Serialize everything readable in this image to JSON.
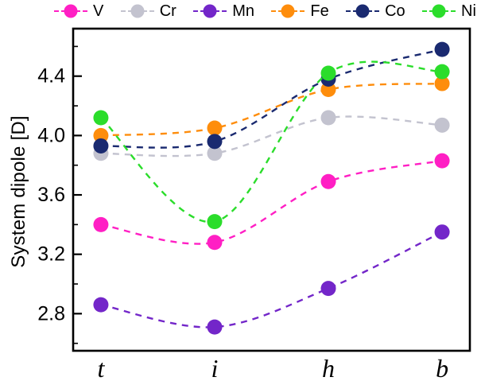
{
  "chart_data": {
    "type": "line",
    "title": "",
    "xlabel": "",
    "ylabel": "System dipole [D]",
    "categories": [
      "t",
      "i",
      "h",
      "b"
    ],
    "ylim": [
      2.55,
      4.72
    ],
    "yticks": [
      2.8,
      3.2,
      3.6,
      4.0,
      4.4
    ],
    "minor_yticks": [
      2.6,
      3.0,
      3.4,
      3.8,
      4.2,
      4.6
    ],
    "grid": false,
    "legend_position": "top",
    "line_style": "dashed",
    "marker": "circle",
    "series": [
      {
        "name": "V",
        "color": "#ff1fc4",
        "values": [
          3.4,
          3.28,
          3.69,
          3.83
        ]
      },
      {
        "name": "Cr",
        "color": "#c3c3cf",
        "values": [
          3.88,
          3.88,
          4.12,
          4.07
        ]
      },
      {
        "name": "Mn",
        "color": "#7326c9",
        "values": [
          2.86,
          2.71,
          2.97,
          3.35
        ]
      },
      {
        "name": "Fe",
        "color": "#fe8d0c",
        "values": [
          4.0,
          4.05,
          4.31,
          4.35
        ]
      },
      {
        "name": "Co",
        "color": "#1a2a70",
        "values": [
          3.93,
          3.96,
          4.38,
          4.58
        ]
      },
      {
        "name": "Ni",
        "color": "#2bdd2b",
        "values": [
          4.12,
          3.42,
          4.42,
          4.43
        ]
      }
    ]
  }
}
